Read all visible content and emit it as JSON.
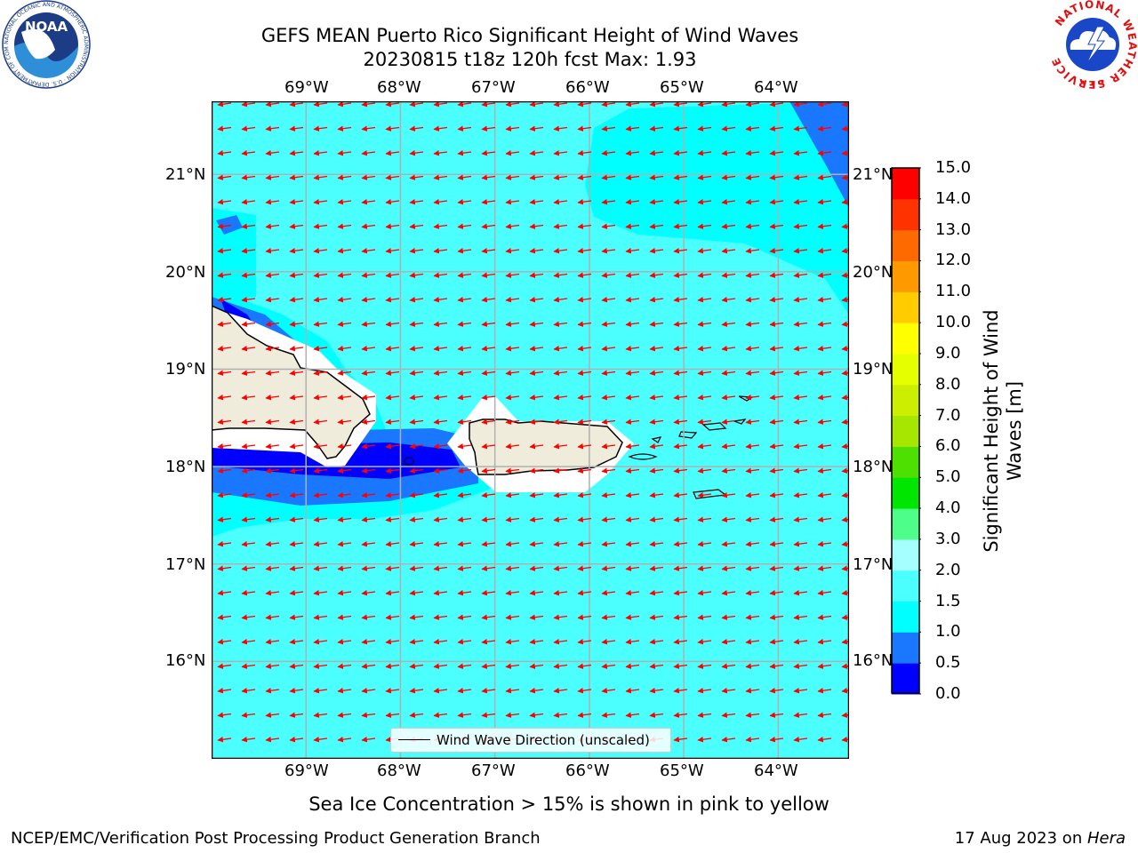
{
  "title": {
    "line1": "GEFS MEAN Puerto Rico Significant Height of Wind Waves",
    "line2": "20230815 t18z 120h fcst   Max: 1.93"
  },
  "map": {
    "lon_range": [
      -70,
      -63.25
    ],
    "lat_range": [
      15,
      21.75
    ],
    "lon_ticks": [
      "69°W",
      "68°W",
      "67°W",
      "66°W",
      "65°W",
      "64°W"
    ],
    "lat_ticks": [
      "21°N",
      "20°N",
      "19°N",
      "18°N",
      "17°N",
      "16°N"
    ],
    "background_value_color": "#4cffff",
    "land_color": "#efecdc",
    "arrow_color": "#ff0000",
    "grid": true
  },
  "legend": {
    "label": "Wind Wave Direction (unscaled)"
  },
  "colorbar": {
    "label": "Significant Height of Wind Waves [m]",
    "ticks": [
      "0.0",
      "0.5",
      "1.0",
      "1.5",
      "2.0",
      "3.0",
      "4.0",
      "5.0",
      "6.0",
      "7.0",
      "8.0",
      "9.0",
      "10.0",
      "11.0",
      "12.0",
      "13.0",
      "14.0",
      "15.0"
    ],
    "colors": [
      "#0000ff",
      "#1a77ff",
      "#00ffff",
      "#4cffff",
      "#a6ffff",
      "#4dff88",
      "#00e600",
      "#4ee000",
      "#a6e600",
      "#ccee00",
      "#e6ff00",
      "#ffff00",
      "#ffcc00",
      "#ff9900",
      "#ff6a00",
      "#ff3300",
      "#ff0000"
    ]
  },
  "footer": {
    "note": "Sea Ice Concentration > 15% is shown in pink to yellow",
    "credit": "NCEP/EMC/Verification Post Processing Product Generation Branch",
    "date": "17 Aug 2023 on ",
    "host": "Hera"
  },
  "logos": {
    "noaa": {
      "text": "NOAA",
      "ring_text": "NATIONAL OCEANIC AND ATMOSPHERIC ADMINISTRATION · U.S. DEPARTMENT OF COMMERCE"
    },
    "nws": {
      "ring_text": "NATIONAL WEATHER SERVICE"
    }
  }
}
